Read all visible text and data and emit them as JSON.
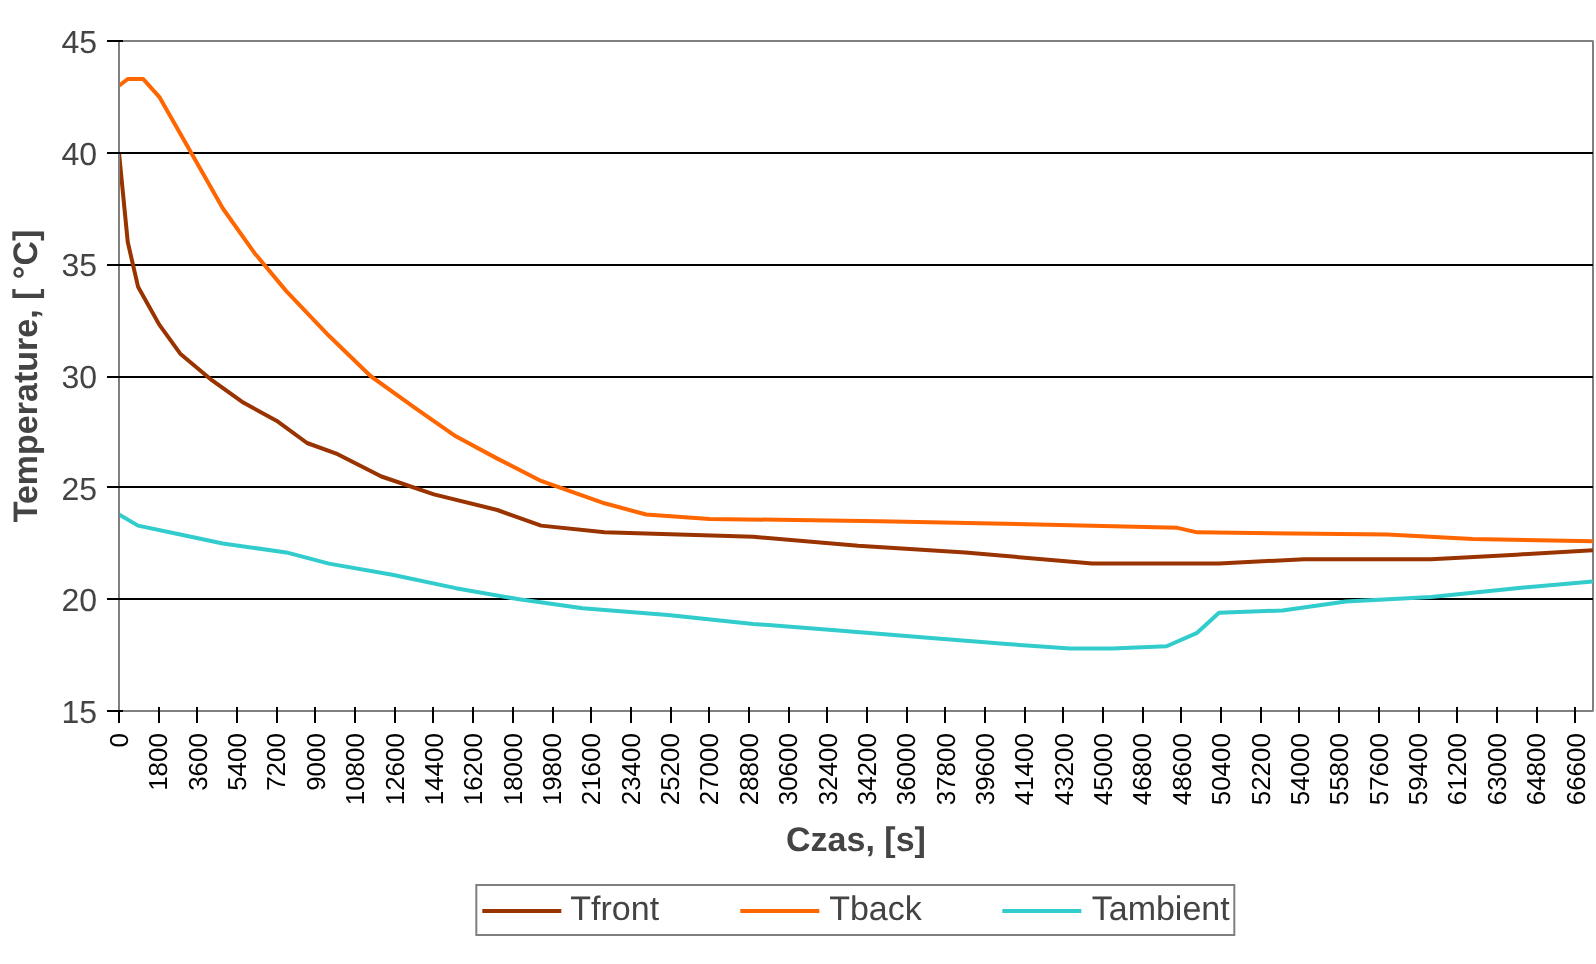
{
  "chart_data": {
    "type": "line",
    "xlabel": "Czas, [s]",
    "ylabel": "Temperature, [ °C]",
    "xlim": [
      0,
      67400
    ],
    "xticks": [
      0,
      1800,
      3600,
      5400,
      7200,
      9000,
      10800,
      12600,
      14400,
      16200,
      18000,
      19800,
      21600,
      23400,
      25200,
      27000,
      28800,
      30600,
      32400,
      34200,
      36000,
      37800,
      39600,
      41400,
      43200,
      45000,
      46800,
      48600,
      50400,
      52200,
      54000,
      55800,
      57600,
      59400,
      61200,
      63000,
      64800,
      66600
    ],
    "ylim": [
      15,
      45
    ],
    "yticks": [
      15,
      20,
      25,
      30,
      35,
      40,
      45
    ],
    "grid": "y",
    "legend": "bottom",
    "marker": "none",
    "line_style": "solid",
    "series": [
      {
        "name": "Tfront",
        "color": "#993300",
        "x": [
          0,
          400,
          870,
          1840,
          2800,
          4260,
          5700,
          7200,
          8600,
          10000,
          12000,
          14400,
          17300,
          19300,
          22200,
          29000,
          33800,
          38700,
          44500,
          50300,
          54200,
          60000,
          63900,
          67400
        ],
        "values": [
          40,
          36,
          34,
          32.3,
          31,
          29.8,
          28.8,
          28,
          27,
          26.5,
          25.5,
          24.7,
          24,
          23.3,
          23,
          22.8,
          22.4,
          22.1,
          21.6,
          21.6,
          21.8,
          21.8,
          22,
          22.2
        ]
      },
      {
        "name": "Tback",
        "color": "#ff6600",
        "x": [
          0,
          400,
          1100,
          1840,
          3300,
          4750,
          6200,
          7650,
          9600,
          11500,
          13500,
          15400,
          17300,
          19300,
          22200,
          24100,
          27000,
          34800,
          44500,
          48400,
          49300,
          58000,
          61900,
          67400
        ],
        "values": [
          43,
          43.3,
          43.3,
          42.5,
          40,
          37.5,
          35.5,
          33.8,
          31.8,
          30,
          28.6,
          27.3,
          26.3,
          25.3,
          24.3,
          23.8,
          23.6,
          23.5,
          23.3,
          23.2,
          23,
          22.9,
          22.7,
          22.6
        ]
      },
      {
        "name": "Tambient",
        "color": "#33cccc",
        "x": [
          0,
          870,
          2800,
          4750,
          7650,
          9600,
          12500,
          15400,
          18300,
          21200,
          25100,
          29000,
          32900,
          36700,
          40600,
          43500,
          45400,
          47900,
          49300,
          50300,
          53200,
          56100,
          60000,
          63900,
          67400
        ],
        "values": [
          23.8,
          23.3,
          22.9,
          22.5,
          22.1,
          21.6,
          21.1,
          20.5,
          20,
          19.6,
          19.3,
          18.9,
          18.6,
          18.3,
          18,
          17.8,
          17.8,
          17.9,
          18.5,
          19.4,
          19.5,
          19.9,
          20.1,
          20.5,
          20.8
        ]
      }
    ]
  }
}
